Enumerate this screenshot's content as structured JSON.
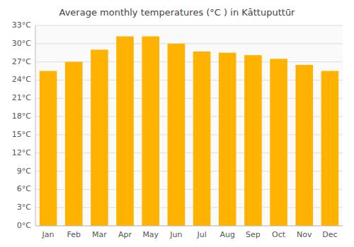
{
  "chart_data": {
    "type": "bar",
    "title": "Average monthly temperatures (°C ) in Kāttuputtūr",
    "categories": [
      "Jan",
      "Feb",
      "Mar",
      "Apr",
      "May",
      "Jun",
      "Jul",
      "Aug",
      "Sep",
      "Oct",
      "Nov",
      "Dec"
    ],
    "values": [
      25.5,
      27.0,
      29.0,
      31.2,
      31.2,
      30.0,
      28.7,
      28.5,
      28.1,
      27.5,
      26.5,
      25.5
    ],
    "color": "#FFB300",
    "ylim": [
      0,
      33
    ],
    "yticks": [
      {
        "value": 0,
        "label": "0°C"
      },
      {
        "value": 3,
        "label": "3°C"
      },
      {
        "value": 6,
        "label": "6°C"
      },
      {
        "value": 9,
        "label": "9°C"
      },
      {
        "value": 12,
        "label": "12°C"
      },
      {
        "value": 15,
        "label": "15°C"
      },
      {
        "value": 18,
        "label": "18°C"
      },
      {
        "value": 21,
        "label": "21°C"
      },
      {
        "value": 24,
        "label": "24°C"
      },
      {
        "value": 27,
        "label": "27°C"
      },
      {
        "value": 30,
        "label": "30°C"
      },
      {
        "value": 33,
        "label": "33°C"
      }
    ],
    "grid": true
  }
}
